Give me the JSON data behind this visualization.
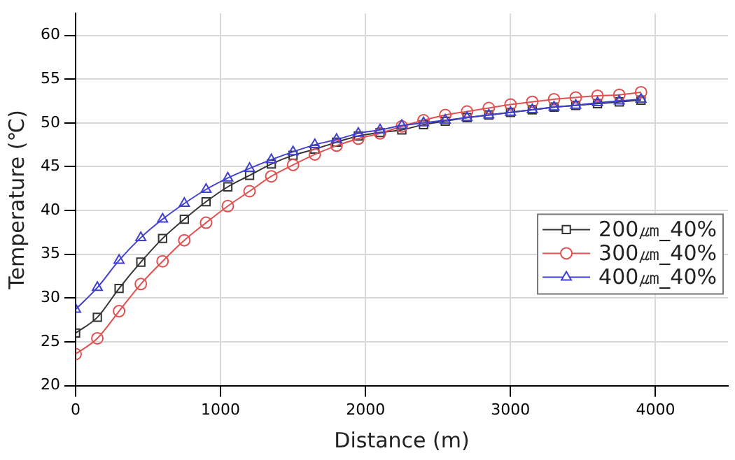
{
  "chart_data": {
    "type": "line",
    "xlabel": "Distance (m)",
    "ylabel": "Temperature (℃)",
    "x": [
      0,
      150,
      300,
      450,
      600,
      750,
      900,
      1050,
      1200,
      1350,
      1500,
      1650,
      1800,
      1950,
      2100,
      2250,
      2400,
      2550,
      2700,
      2850,
      3000,
      3150,
      3300,
      3450,
      3600,
      3750,
      3900
    ],
    "series": [
      {
        "name": "200㎛_40%",
        "color": "#333333",
        "marker": "square",
        "values": [
          26,
          27.8,
          31.1,
          34.1,
          36.8,
          39,
          41,
          42.7,
          44,
          45.3,
          46.3,
          47,
          47.8,
          48.5,
          48.9,
          49.2,
          49.8,
          50.2,
          50.6,
          50.9,
          51.2,
          51.5,
          51.8,
          52,
          52.2,
          52.4,
          52.6
        ]
      },
      {
        "name": "300㎛_40%",
        "color": "#e05050",
        "marker": "circle",
        "values": [
          23.6,
          25.4,
          28.5,
          31.6,
          34.2,
          36.6,
          38.6,
          40.5,
          42.2,
          43.9,
          45.2,
          46.4,
          47.4,
          48.2,
          48.8,
          49.6,
          50.3,
          50.9,
          51.3,
          51.7,
          52.1,
          52.4,
          52.7,
          52.9,
          53.1,
          53.2,
          53.5
        ]
      },
      {
        "name": "400㎛_40%",
        "color": "#4040d0",
        "marker": "triangle",
        "values": [
          28.7,
          31.2,
          34.3,
          36.9,
          39,
          40.8,
          42.4,
          43.7,
          44.8,
          45.8,
          46.7,
          47.5,
          48.1,
          48.8,
          49.2,
          49.7,
          50,
          50.3,
          50.6,
          50.9,
          51.2,
          51.5,
          51.8,
          52,
          52.3,
          52.5,
          52.7
        ]
      }
    ],
    "xlim": [
      0,
      4500
    ],
    "xticks": [
      0,
      1000,
      2000,
      3000,
      4000
    ],
    "ylim": [
      20,
      62.5
    ],
    "yticks": [
      20,
      25,
      30,
      35,
      40,
      45,
      50,
      55,
      60
    ],
    "grid": true,
    "legend": "right",
    "line_style": "solid"
  }
}
